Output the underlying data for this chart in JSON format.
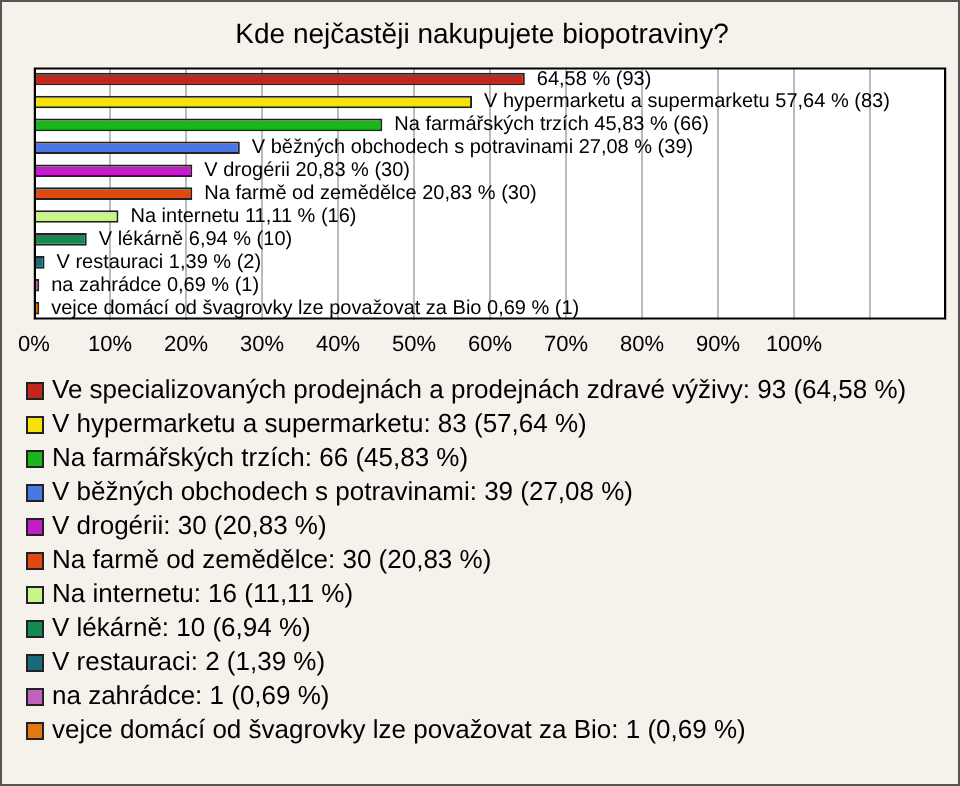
{
  "chart_data": {
    "type": "bar",
    "orientation": "horizontal",
    "stacked": true,
    "title": "Kde nejčastěji nakupujete biopotraviny?",
    "categories": [
      null,
      null,
      null,
      null,
      null,
      null,
      null,
      null,
      null,
      null,
      null
    ],
    "series": [
      {
        "name": "Ve specializovaných prodejnách a prodejnách zdravé výživy: 93 (64,58 %)",
        "color": "#c0281c",
        "values": [
          64.58,
          null,
          null,
          null,
          null,
          null,
          null,
          null,
          null,
          null,
          null
        ],
        "value_labels": [
          "64,58 % (93)",
          null,
          null,
          null,
          null,
          null,
          null,
          null,
          null,
          null,
          null
        ]
      },
      {
        "name": "V hypermarketu a supermarketu: 83 (57,64 %)",
        "color": "#f5e20a",
        "values": [
          null,
          57.64,
          null,
          null,
          null,
          null,
          null,
          null,
          null,
          null,
          null
        ],
        "value_labels": [
          null,
          "V hypermarketu a supermarketu 57,64 % (83)",
          null,
          null,
          null,
          null,
          null,
          null,
          null,
          null,
          null
        ]
      },
      {
        "name": "Na farmářských trzích: 66 (45,83 %)",
        "color": "#19b719",
        "values": [
          null,
          null,
          45.83,
          null,
          null,
          null,
          null,
          null,
          null,
          null,
          null
        ],
        "value_labels": [
          null,
          null,
          "Na farmářských trzích 45,83 % (66)",
          null,
          null,
          null,
          null,
          null,
          null,
          null,
          null
        ]
      },
      {
        "name": "V běžných obchodech s potravinami: 39 (27,08 %)",
        "color": "#4a76e8",
        "values": [
          null,
          null,
          null,
          27.08,
          null,
          null,
          null,
          null,
          null,
          null,
          null
        ],
        "value_labels": [
          null,
          null,
          null,
          "V běžných obchodech s potravinami 27,08 % (39)",
          null,
          null,
          null,
          null,
          null,
          null,
          null
        ]
      },
      {
        "name": "V drogérii: 30 (20,83 %)",
        "color": "#c21ec8",
        "values": [
          null,
          null,
          null,
          null,
          20.83,
          null,
          null,
          null,
          null,
          null,
          null
        ],
        "value_labels": [
          null,
          null,
          null,
          null,
          "V drogérii 20,83 % (30)",
          null,
          null,
          null,
          null,
          null,
          null
        ]
      },
      {
        "name": "Na farmě od zemědělce: 30 (20,83 %)",
        "color": "#e04a10",
        "values": [
          null,
          null,
          null,
          null,
          null,
          20.83,
          null,
          null,
          null,
          null,
          null
        ],
        "value_labels": [
          null,
          null,
          null,
          null,
          null,
          "Na farmě od zemědělce 20,83 % (30)",
          null,
          null,
          null,
          null,
          null
        ]
      },
      {
        "name": "Na internetu: 16 (11,11 %)",
        "color": "#c8f58a",
        "values": [
          null,
          null,
          null,
          null,
          null,
          null,
          11.11,
          null,
          null,
          null,
          null
        ],
        "value_labels": [
          null,
          null,
          null,
          null,
          null,
          null,
          "Na internetu 11,11 % (16)",
          null,
          null,
          null,
          null
        ]
      },
      {
        "name": "V lékárně: 10 (6,94 %)",
        "color": "#148a50",
        "values": [
          null,
          null,
          null,
          null,
          null,
          null,
          null,
          6.94,
          null,
          null,
          null
        ],
        "value_labels": [
          null,
          null,
          null,
          null,
          null,
          null,
          null,
          "V lékárně 6,94 % (10)",
          null,
          null,
          null
        ]
      },
      {
        "name": "V restauraci: 2 (1,39 %)",
        "color": "#1a6a7a",
        "values": [
          null,
          null,
          null,
          null,
          null,
          null,
          null,
          null,
          1.39,
          null,
          null
        ],
        "value_labels": [
          null,
          null,
          null,
          null,
          null,
          null,
          null,
          null,
          "V restauraci 1,39 % (2)",
          null,
          null
        ]
      },
      {
        "name": "na zahrádce: 1 (0,69 %)",
        "color": "#c060c0",
        "values": [
          null,
          null,
          null,
          null,
          null,
          null,
          null,
          null,
          null,
          0.69,
          null
        ],
        "value_labels": [
          null,
          null,
          null,
          null,
          null,
          null,
          null,
          null,
          null,
          "na zahrádce 0,69 % (1)",
          null
        ]
      },
      {
        "name": "vejce domácí od švagrovky lze považovat za Bio: 1 (0,69 %)",
        "color": "#e07a10",
        "values": [
          null,
          null,
          null,
          null,
          null,
          null,
          null,
          null,
          null,
          null,
          0.69
        ],
        "value_labels": [
          null,
          null,
          null,
          null,
          null,
          null,
          null,
          null,
          null,
          null,
          "vejce domácí od švagrovky lze považovat za Bio 0,69 % (1)"
        ]
      }
    ],
    "xlim": [
      0,
      120
    ],
    "xticks": [
      {
        "value": 0,
        "label": "0%"
      },
      {
        "value": 10,
        "label": "10%"
      },
      {
        "value": 20,
        "label": "20%"
      },
      {
        "value": 30,
        "label": "30%"
      },
      {
        "value": 40,
        "label": "40%"
      },
      {
        "value": 50,
        "label": "50%"
      },
      {
        "value": 60,
        "label": "60%"
      },
      {
        "value": 70,
        "label": "70%"
      },
      {
        "value": 80,
        "label": "80%"
      },
      {
        "value": 90,
        "label": "90%"
      },
      {
        "value": 100,
        "label": "100%"
      },
      {
        "value": 110,
        "label": null
      },
      {
        "value": 120,
        "label": null
      }
    ],
    "grid": "x",
    "legend": "bottom",
    "tick_labels": "x"
  }
}
